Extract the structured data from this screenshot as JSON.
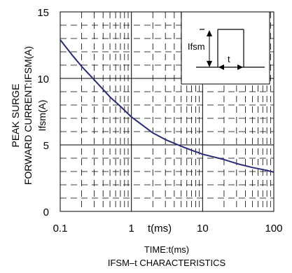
{
  "chart_data": {
    "type": "line",
    "title": "IFSM–t CHARACTERISTICS",
    "xlabel": "TIME:t(ms)",
    "xlabel_inner": "t(ms)",
    "ylabel_line1": "PEAK SURGE",
    "ylabel_line2": "FORWARD CURRENT:IFSM(A)",
    "ylabel_line3": "Ifsm(A)",
    "x_scale": "log",
    "xlim": [
      0.1,
      100
    ],
    "ylim": [
      0,
      15
    ],
    "x_ticks": [
      {
        "value": 0.1,
        "label": "0.1"
      },
      {
        "value": 1,
        "label": "1"
      },
      {
        "value": 10,
        "label": "10"
      },
      {
        "value": 100,
        "label": "100"
      }
    ],
    "y_ticks": [
      {
        "value": 0,
        "label": "0"
      },
      {
        "value": 5,
        "label": "5"
      },
      {
        "value": 10,
        "label": "10"
      },
      {
        "value": 15,
        "label": "15"
      }
    ],
    "grid": true,
    "series": [
      {
        "color": "#2b2b7a",
        "x": [
          0.1,
          0.15,
          0.2,
          0.3,
          0.5,
          0.7,
          1,
          1.5,
          2,
          3,
          5,
          7,
          10,
          20,
          30,
          50,
          70,
          100
        ],
        "y": [
          12.9,
          11.7,
          10.9,
          9.9,
          8.6,
          7.9,
          7.1,
          6.4,
          5.9,
          5.4,
          4.9,
          4.6,
          4.3,
          3.9,
          3.6,
          3.3,
          3.15,
          2.95
        ]
      }
    ],
    "inset": {
      "label_ifsm": "Ifsm",
      "label_t": "t"
    }
  }
}
